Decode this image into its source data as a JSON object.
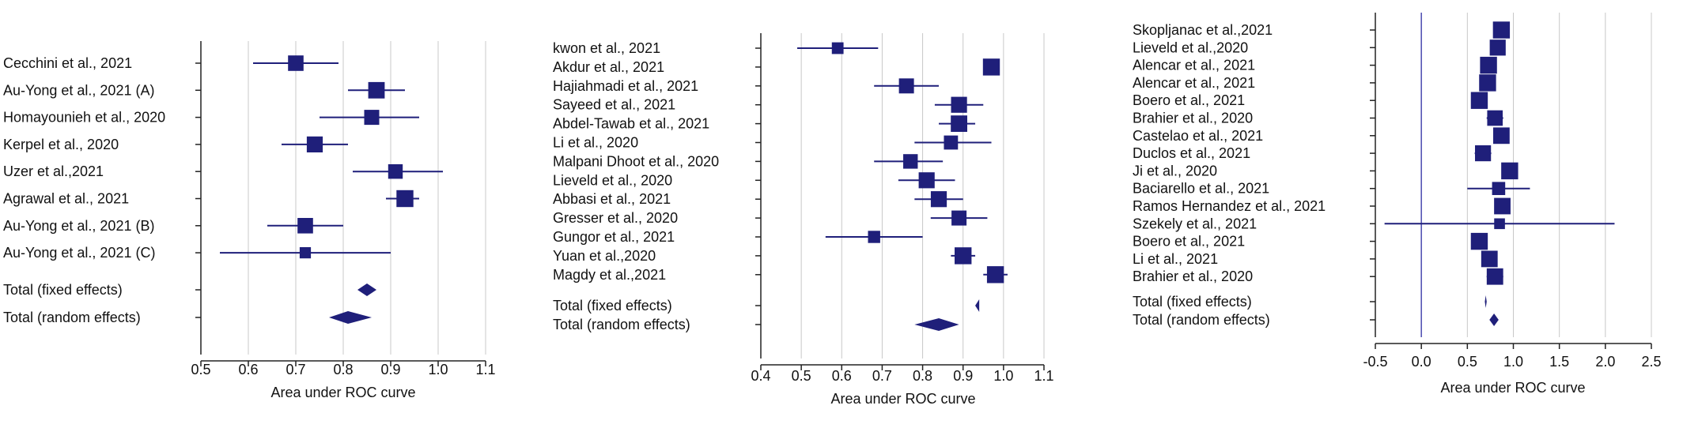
{
  "chart_data": [
    {
      "type": "forest",
      "xlabel": "Area under ROC curve",
      "xlim": [
        0.5,
        1.1
      ],
      "xticks": [
        0.5,
        0.6,
        0.7,
        0.8,
        0.9,
        1.0,
        1.1
      ],
      "xtick_labels": [
        "0.5",
        "0.6",
        "0.7",
        "0.8",
        "0.9",
        "1.0",
        "1.1"
      ],
      "grid": true,
      "reference_line": null,
      "studies": [
        {
          "label": "Cecchini et al., 2021",
          "auc": 0.7,
          "ci": [
            0.61,
            0.79
          ],
          "weight": 0.8
        },
        {
          "label": "Au-Yong et al., 2021 (A)",
          "auc": 0.87,
          "ci": [
            0.81,
            0.93
          ],
          "weight": 0.9
        },
        {
          "label": "Homayounieh et al., 2020",
          "auc": 0.86,
          "ci": [
            0.75,
            0.96
          ],
          "weight": 0.75
        },
        {
          "label": "Kerpel et al., 2020",
          "auc": 0.74,
          "ci": [
            0.67,
            0.81
          ],
          "weight": 0.85
        },
        {
          "label": "Uzer et al.,2021",
          "auc": 0.91,
          "ci": [
            0.82,
            1.01
          ],
          "weight": 0.7
        },
        {
          "label": "Agrawal et al., 2021",
          "auc": 0.93,
          "ci": [
            0.89,
            0.96
          ],
          "weight": 0.95
        },
        {
          "label": "Au-Yong et al., 2021 (B)",
          "auc": 0.72,
          "ci": [
            0.64,
            0.8
          ],
          "weight": 0.8
        },
        {
          "label": "Au-Yong et al., 2021 (C)",
          "auc": 0.72,
          "ci": [
            0.54,
            0.9
          ],
          "weight": 0.35
        }
      ],
      "pooled": [
        {
          "label": "Total (fixed effects)",
          "auc": 0.85,
          "ci": [
            0.83,
            0.87
          ]
        },
        {
          "label": "Total (random effects)",
          "auc": 0.81,
          "ci": [
            0.77,
            0.86
          ]
        }
      ]
    },
    {
      "type": "forest",
      "xlabel": "Area under ROC curve",
      "xlim": [
        0.4,
        1.1
      ],
      "xticks": [
        0.4,
        0.5,
        0.6,
        0.7,
        0.8,
        0.9,
        1.0,
        1.1
      ],
      "xtick_labels": [
        "0.4",
        "0.5",
        "0.6",
        "0.7",
        "0.8",
        "0.9",
        "1.0",
        "1.1"
      ],
      "grid": true,
      "reference_line": null,
      "studies": [
        {
          "label": "kwon et al., 2021",
          "auc": 0.59,
          "ci": [
            0.49,
            0.69
          ],
          "weight": 0.4
        },
        {
          "label": "Akdur et al., 2021",
          "auc": 0.97,
          "ci": [
            0.96,
            0.98
          ],
          "weight": 0.95
        },
        {
          "label": "Hajiahmadi et al., 2021",
          "auc": 0.76,
          "ci": [
            0.68,
            0.84
          ],
          "weight": 0.75
        },
        {
          "label": "Sayeed et al., 2021",
          "auc": 0.89,
          "ci": [
            0.83,
            0.95
          ],
          "weight": 0.85
        },
        {
          "label": "Abdel-Tawab et al., 2021",
          "auc": 0.89,
          "ci": [
            0.84,
            0.93
          ],
          "weight": 0.9
        },
        {
          "label": "Li et al., 2020",
          "auc": 0.87,
          "ci": [
            0.78,
            0.97
          ],
          "weight": 0.65
        },
        {
          "label": "Malpani Dhoot et al., 2020",
          "auc": 0.77,
          "ci": [
            0.68,
            0.85
          ],
          "weight": 0.7
        },
        {
          "label": "Lieveld et al., 2020",
          "auc": 0.81,
          "ci": [
            0.74,
            0.88
          ],
          "weight": 0.85
        },
        {
          "label": "Abbasi et al., 2021",
          "auc": 0.84,
          "ci": [
            0.78,
            0.9
          ],
          "weight": 0.85
        },
        {
          "label": "Gresser et al., 2020",
          "auc": 0.89,
          "ci": [
            0.82,
            0.96
          ],
          "weight": 0.75
        },
        {
          "label": "Gungor et al., 2021",
          "auc": 0.68,
          "ci": [
            0.56,
            0.8
          ],
          "weight": 0.45
        },
        {
          "label": "Yuan et al.,2020",
          "auc": 0.9,
          "ci": [
            0.87,
            0.93
          ],
          "weight": 0.95
        },
        {
          "label": "Magdy et al.,2021",
          "auc": 0.98,
          "ci": [
            0.95,
            1.01
          ],
          "weight": 0.95
        }
      ],
      "pooled": [
        {
          "label": "Total (fixed effects)",
          "auc": 0.94,
          "ci": [
            0.93,
            0.94
          ]
        },
        {
          "label": "Total (random effects)",
          "auc": 0.84,
          "ci": [
            0.78,
            0.89
          ]
        }
      ]
    },
    {
      "type": "forest",
      "xlabel": "Area under ROC curve",
      "xlim": [
        -0.5,
        2.5
      ],
      "xticks": [
        -0.5,
        0.0,
        0.5,
        1.0,
        1.5,
        2.0,
        2.5
      ],
      "xtick_labels": [
        "-0.5",
        "0.0",
        "0.5",
        "1.0",
        "1.5",
        "2.0",
        "2.5"
      ],
      "grid": true,
      "reference_line": 0.0,
      "studies": [
        {
          "label": "Skopljanac et al.,2021",
          "auc": 0.87,
          "ci": [
            0.8,
            0.95
          ],
          "weight": 0.95
        },
        {
          "label": "Lieveld et al.,2020",
          "auc": 0.83,
          "ci": [
            0.76,
            0.9
          ],
          "weight": 0.85
        },
        {
          "label": "Alencar et al.,  2021",
          "auc": 0.73,
          "ci": [
            0.65,
            0.81
          ],
          "weight": 0.95
        },
        {
          "label": "Alencar et al.,  2021",
          "auc": 0.72,
          "ci": [
            0.64,
            0.8
          ],
          "weight": 0.95
        },
        {
          "label": "Boero et al., 2021",
          "auc": 0.63,
          "ci": [
            0.55,
            0.71
          ],
          "weight": 0.95
        },
        {
          "label": "Brahier et al., 2020",
          "auc": 0.8,
          "ci": [
            0.71,
            0.89
          ],
          "weight": 0.8
        },
        {
          "label": "Castelao et al., 2021",
          "auc": 0.87,
          "ci": [
            0.8,
            0.94
          ],
          "weight": 0.9
        },
        {
          "label": "Duclos et al., 2021",
          "auc": 0.67,
          "ci": [
            0.58,
            0.76
          ],
          "weight": 0.85
        },
        {
          "label": "Ji et al., 2020",
          "auc": 0.96,
          "ci": [
            0.89,
            1.03
          ],
          "weight": 0.95
        },
        {
          "label": "Baciarello et al., 2021",
          "auc": 0.84,
          "ci": [
            0.5,
            1.18
          ],
          "weight": 0.55
        },
        {
          "label": "Ramos Hernandez et al., 2021",
          "auc": 0.88,
          "ci": [
            0.81,
            0.95
          ],
          "weight": 0.9
        },
        {
          "label": "Szekely et al., 2021",
          "auc": 0.85,
          "ci": [
            -0.4,
            2.1
          ],
          "weight": 0.3
        },
        {
          "label": "Boero et al., 2021",
          "auc": 0.63,
          "ci": [
            0.55,
            0.71
          ],
          "weight": 0.95
        },
        {
          "label": "Li et al., 2021",
          "auc": 0.74,
          "ci": [
            0.66,
            0.82
          ],
          "weight": 0.9
        },
        {
          "label": "Brahier et al., 2020",
          "auc": 0.8,
          "ci": [
            0.71,
            0.89
          ],
          "weight": 0.9
        }
      ],
      "pooled": [
        {
          "label": "Total (fixed effects)",
          "auc": 0.7,
          "ci": [
            0.69,
            0.71
          ]
        },
        {
          "label": "Total (random effects)",
          "auc": 0.79,
          "ci": [
            0.74,
            0.84
          ]
        }
      ]
    }
  ],
  "colors": {
    "marker": "#1f1f7a",
    "grid": "#c8c8c8",
    "axis": "#222222",
    "text": "#111111",
    "reference_line": "#4a4ab0"
  }
}
